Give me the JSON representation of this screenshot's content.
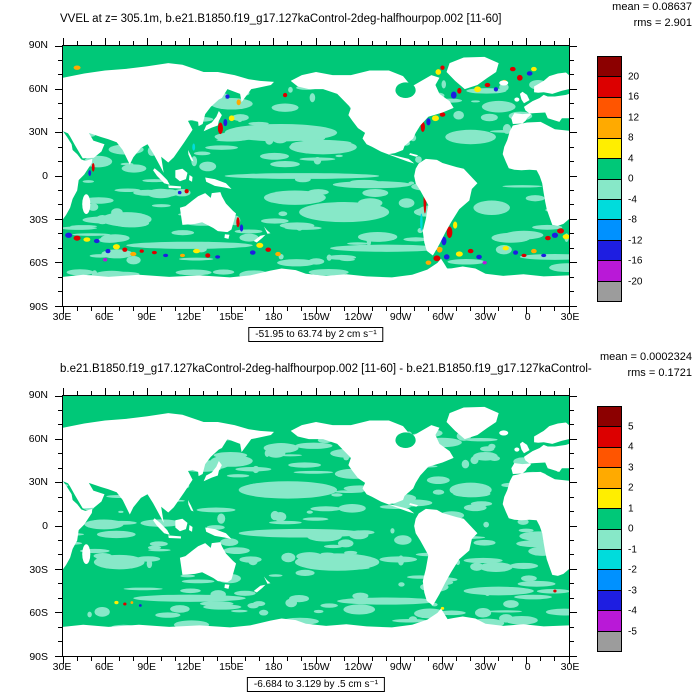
{
  "page": {
    "background": "#ffffff"
  },
  "chart_data": [
    {
      "type": "heatmap",
      "title": "VVEL at z= 305.1m, b.e21.B1850.f19_g17.127kaControl-2deg-halfhourpop.002 [11-60]",
      "mean_label": "mean = 0.08637",
      "rms_label": "rms = 2.901",
      "range_label": "-51.95 to 63.74 by 2 cm s⁻¹",
      "xlabel": "",
      "ylabel": "",
      "x_ticks": [
        "30E",
        "60E",
        "90E",
        "120E",
        "150E",
        "180",
        "150W",
        "120W",
        "90W",
        "60W",
        "30W",
        "0",
        "30E"
      ],
      "y_ticks": [
        "90N",
        "60N",
        "30N",
        "0",
        "30S",
        "60S",
        "90S"
      ],
      "colorbar": {
        "labels": [
          "20",
          "16",
          "12",
          "8",
          "4",
          "0",
          "-4",
          "-8",
          "-12",
          "-16",
          "-20"
        ],
        "colors": [
          "#8c0000",
          "#dc0000",
          "#ff5500",
          "#ffaa00",
          "#ffee00",
          "#00c878",
          "#87e8c8",
          "#00dcdc",
          "#0091ff",
          "#1e1ee1",
          "#b919d7",
          "#9c9c9c"
        ]
      },
      "map": {
        "ocean_color": "#00c878",
        "patch_color": "#87e8c8",
        "land_color": "#ffffff",
        "texture_seed": 13,
        "texture_count": 150,
        "features_format": "[lon_deg_east, lat_deg, radius_lon_deg, radius_lat_deg, color(optional=patch_color)]",
        "features": [
          [
            185,
            30,
            40,
            6
          ],
          [
            215,
            20,
            24,
            5
          ],
          [
            230,
            -25,
            32,
            7
          ],
          [
            195,
            -15,
            22,
            5
          ],
          [
            320,
            27,
            18,
            5
          ],
          [
            335,
            -22,
            13,
            5
          ],
          [
            75,
            -30,
            18,
            5
          ],
          [
            55,
            10,
            10,
            4
          ],
          [
            200,
            0,
            55,
            2
          ],
          [
            250,
            -6,
            28,
            2.5
          ],
          [
            150,
            50,
            15,
            4
          ],
          [
            340,
            48,
            12,
            4
          ],
          [
            120,
            -48,
            45,
            2.5
          ],
          [
            260,
            -50,
            40,
            2.5
          ],
          [
            20,
            -56,
            25,
            2
          ],
          [
            142,
            33,
            1.8,
            4,
            "#dc0000"
          ],
          [
            145.5,
            37,
            1.4,
            2.5,
            "#1e1ee1"
          ],
          [
            150,
            40,
            2,
            2,
            "#ffee00"
          ],
          [
            155,
            51,
            1.5,
            2,
            "#ffaa00"
          ],
          [
            147,
            55,
            1.5,
            1.5,
            "#1e1ee1"
          ],
          [
            188,
            56,
            1.5,
            1.5,
            "#dc0000"
          ],
          [
            123,
            20,
            1,
            2.5,
            "#00dcdc"
          ],
          [
            286,
            34,
            1.5,
            3.5,
            "#dc0000"
          ],
          [
            290,
            37.5,
            1.5,
            2.5,
            "#1e1ee1"
          ],
          [
            295,
            40,
            2.5,
            2,
            "#ffee00"
          ],
          [
            300,
            42.5,
            2,
            1.5,
            "#dc0000"
          ],
          [
            308,
            56,
            2,
            2.5,
            "#1e1ee1"
          ],
          [
            312,
            59,
            1.5,
            2,
            "#dc0000"
          ],
          [
            325,
            60,
            2.5,
            2,
            "#ffee00"
          ],
          [
            332,
            63,
            2,
            1.5,
            "#dc0000"
          ],
          [
            338,
            60,
            1.5,
            1.5,
            "#1e1ee1"
          ],
          [
            344,
            65,
            2,
            1.5,
            "#ffaa00"
          ],
          [
            355,
            68,
            2,
            2,
            "#dc0000"
          ],
          [
            350,
            74,
            2,
            1.5,
            "#dc0000"
          ],
          [
            2,
            71,
            2,
            1.5,
            "#1e1ee1"
          ],
          [
            5,
            74,
            2,
            1.5,
            "#ffee00"
          ],
          [
            40,
            75,
            2.5,
            1.5,
            "#ffaa00"
          ],
          [
            297,
            72,
            2,
            2,
            "#ffee00"
          ],
          [
            300,
            75,
            1.5,
            1.5,
            "#dc0000"
          ],
          [
            305,
            -39,
            2,
            4,
            "#dc0000"
          ],
          [
            301,
            -45,
            1.8,
            3,
            "#1e1ee1"
          ],
          [
            309,
            -34,
            1.5,
            2.5,
            "#ffee00"
          ],
          [
            298,
            -51,
            2,
            2,
            "#ffaa00"
          ],
          [
            287.5,
            -17,
            1,
            9,
            "#dc0000"
          ],
          [
            285,
            -32,
            0.9,
            6,
            "#00dcdc"
          ],
          [
            296,
            -57,
            2.5,
            2,
            "#dc0000"
          ],
          [
            303,
            -56,
            2,
            1.8,
            "#1e1ee1"
          ],
          [
            312,
            -54,
            2.5,
            1.8,
            "#ffee00"
          ],
          [
            290,
            -60,
            2,
            1.5,
            "#ffaa00"
          ],
          [
            320,
            -52,
            2,
            1.5,
            "#dc0000"
          ],
          [
            326,
            -56,
            2,
            1.5,
            "#1e1ee1"
          ],
          [
            330,
            -60,
            1.5,
            1.2,
            "#b919d7"
          ],
          [
            24,
            -38,
            2.5,
            1.8,
            "#dc0000"
          ],
          [
            20,
            -41,
            2.2,
            1.8,
            "#1e1ee1"
          ],
          [
            28,
            -42,
            2.5,
            1.8,
            "#ffee00"
          ],
          [
            15,
            -43,
            2,
            1.5,
            "#dc0000"
          ],
          [
            34,
            -41,
            2.5,
            1.8,
            "#1e1ee1"
          ],
          [
            40,
            -43,
            2.5,
            1.8,
            "#dc0000"
          ],
          [
            47,
            -44,
            2.5,
            1.5,
            "#ffee00"
          ],
          [
            54,
            -45,
            2,
            1.5,
            "#1e1ee1"
          ],
          [
            51.5,
            6,
            1,
            3,
            "#dc0000"
          ],
          [
            49,
            2,
            1,
            2,
            "#1e1ee1"
          ],
          [
            154.5,
            -32,
            1.2,
            3.5,
            "#dc0000"
          ],
          [
            157,
            -36,
            1.2,
            2.5,
            "#1e1ee1"
          ],
          [
            170,
            -48,
            2.5,
            1.8,
            "#ffee00"
          ],
          [
            176,
            -51,
            2,
            1.5,
            "#dc0000"
          ],
          [
            165,
            -53,
            2,
            1.5,
            "#1e1ee1"
          ],
          [
            183,
            -54,
            2,
            1.5,
            "#ffaa00"
          ],
          [
            68,
            -49,
            2.5,
            1.8,
            "#ffee00"
          ],
          [
            74,
            -51,
            1.8,
            1.5,
            "#dc0000"
          ],
          [
            62,
            -52,
            1.8,
            1.5,
            "#1e1ee1"
          ],
          [
            80,
            -54,
            2.2,
            1.5,
            "#ffaa00"
          ],
          [
            86,
            -52,
            1.5,
            1.2,
            "#dc0000"
          ],
          [
            60,
            -58,
            1.5,
            1.2,
            "#b919d7"
          ],
          [
            125,
            -52,
            2.5,
            1.5,
            "#ffee00"
          ],
          [
            133,
            -55,
            1.8,
            1.5,
            "#dc0000"
          ],
          [
            140,
            -56,
            1.8,
            1.2,
            "#1e1ee1"
          ],
          [
            115,
            -55,
            1.8,
            1.2,
            "#ffaa00"
          ],
          [
            95,
            -53,
            1.8,
            1.2,
            "#dc0000"
          ],
          [
            103,
            -55,
            1.8,
            1.2,
            "#1e1ee1"
          ],
          [
            345,
            -50,
            2.2,
            1.5,
            "#ffee00"
          ],
          [
            352,
            -53,
            1.8,
            1.5,
            "#1e1ee1"
          ],
          [
            358,
            -55,
            1.8,
            1.2,
            "#dc0000"
          ],
          [
            5,
            -52,
            2,
            1.5,
            "#ffaa00"
          ],
          [
            12,
            -55,
            1.8,
            1.2,
            "#1e1ee1"
          ],
          [
            118,
            -10.5,
            1.5,
            1.5,
            "#dc0000"
          ],
          [
            113,
            -11.5,
            1.3,
            1.2,
            "#1e1ee1"
          ]
        ]
      }
    },
    {
      "type": "heatmap",
      "title": "b.e21.B1850.f19_g17.127kaControl-2deg-halfhourpop.002 [11-60] - b.e21.B1850.f19_g17.127kaControl-",
      "mean_label": "mean = 0.0002324",
      "rms_label": "rms = 0.1721",
      "range_label": "-6.684 to 3.129 by .5 cm s⁻¹",
      "xlabel": "",
      "ylabel": "",
      "x_ticks": [
        "30E",
        "60E",
        "90E",
        "120E",
        "150E",
        "180",
        "150W",
        "120W",
        "90W",
        "60W",
        "30W",
        "0",
        "30E"
      ],
      "y_ticks": [
        "90N",
        "60N",
        "30N",
        "0",
        "30S",
        "60S",
        "90S"
      ],
      "colorbar": {
        "labels": [
          "5",
          "4",
          "3",
          "2",
          "1",
          "0",
          "-1",
          "-2",
          "-3",
          "-4",
          "-5"
        ],
        "colors": [
          "#8c0000",
          "#dc0000",
          "#ff5500",
          "#ffaa00",
          "#ffee00",
          "#00c878",
          "#87e8c8",
          "#00dcdc",
          "#0091ff",
          "#1e1ee1",
          "#b919d7",
          "#9c9c9c"
        ]
      },
      "map": {
        "ocean_color": "#00c878",
        "patch_color": "#87e8c8",
        "land_color": "#ffffff",
        "texture_seed": 29,
        "texture_count": 230,
        "features_format": "[lon_deg_east, lat_deg, radius_lon_deg, radius_lat_deg, color(optional=patch_color)]",
        "features": [
          [
            190,
            25,
            35,
            6
          ],
          [
            225,
            -25,
            30,
            6
          ],
          [
            320,
            25,
            15,
            5
          ],
          [
            70,
            -25,
            18,
            5
          ],
          [
            200,
            -5,
            45,
            3
          ],
          [
            150,
            45,
            15,
            4
          ],
          [
            340,
            -45,
            25,
            3
          ],
          [
            120,
            -50,
            40,
            2.5
          ],
          [
            260,
            -52,
            35,
            2.5
          ],
          [
            68,
            -53,
            1.5,
            1.2,
            "#ffee00"
          ],
          [
            74,
            -54,
            1.2,
            1,
            "#dc0000"
          ],
          [
            79,
            -53,
            1,
            1,
            "#ffaa00"
          ],
          [
            85,
            -55,
            1,
            0.9,
            "#1e1ee1"
          ],
          [
            300,
            -57,
            1.2,
            1,
            "#ffee00"
          ],
          [
            20,
            -45,
            1.2,
            1,
            "#dc0000"
          ]
        ]
      }
    }
  ]
}
